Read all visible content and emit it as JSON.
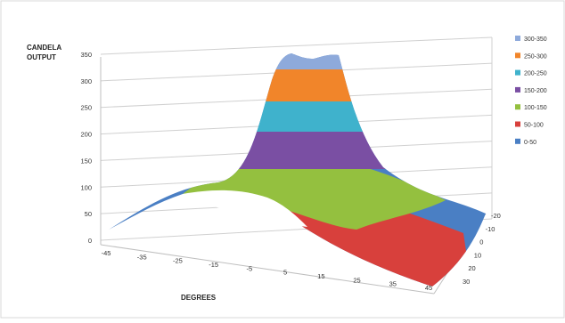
{
  "chart_data": {
    "type": "surface",
    "ylabel": "CANDELA\nOUTPUT",
    "xlabel": "DEGREES",
    "y_ticks": [
      "0",
      "50",
      "100",
      "150",
      "200",
      "250",
      "300",
      "350"
    ],
    "x_ticks": [
      "-45",
      "-35",
      "-25",
      "-15",
      "-5",
      "5",
      "15",
      "25",
      "35",
      "45"
    ],
    "z_ticks": [
      "-20",
      "-10",
      "0",
      "10",
      "20",
      "30"
    ],
    "ylim": [
      0,
      350
    ],
    "grid": true,
    "legend_position": "right",
    "bands": [
      {
        "label": "300-350",
        "color": "#8eaadb"
      },
      {
        "label": "250-300",
        "color": "#f1852a"
      },
      {
        "label": "200-250",
        "color": "#3fb2cc"
      },
      {
        "label": "150-200",
        "color": "#7a4fa3"
      },
      {
        "label": "100-150",
        "color": "#94c03f"
      },
      {
        "label": "50-100",
        "color": "#d8403c"
      },
      {
        "label": "0-50",
        "color": "#4a7fc4"
      }
    ]
  }
}
